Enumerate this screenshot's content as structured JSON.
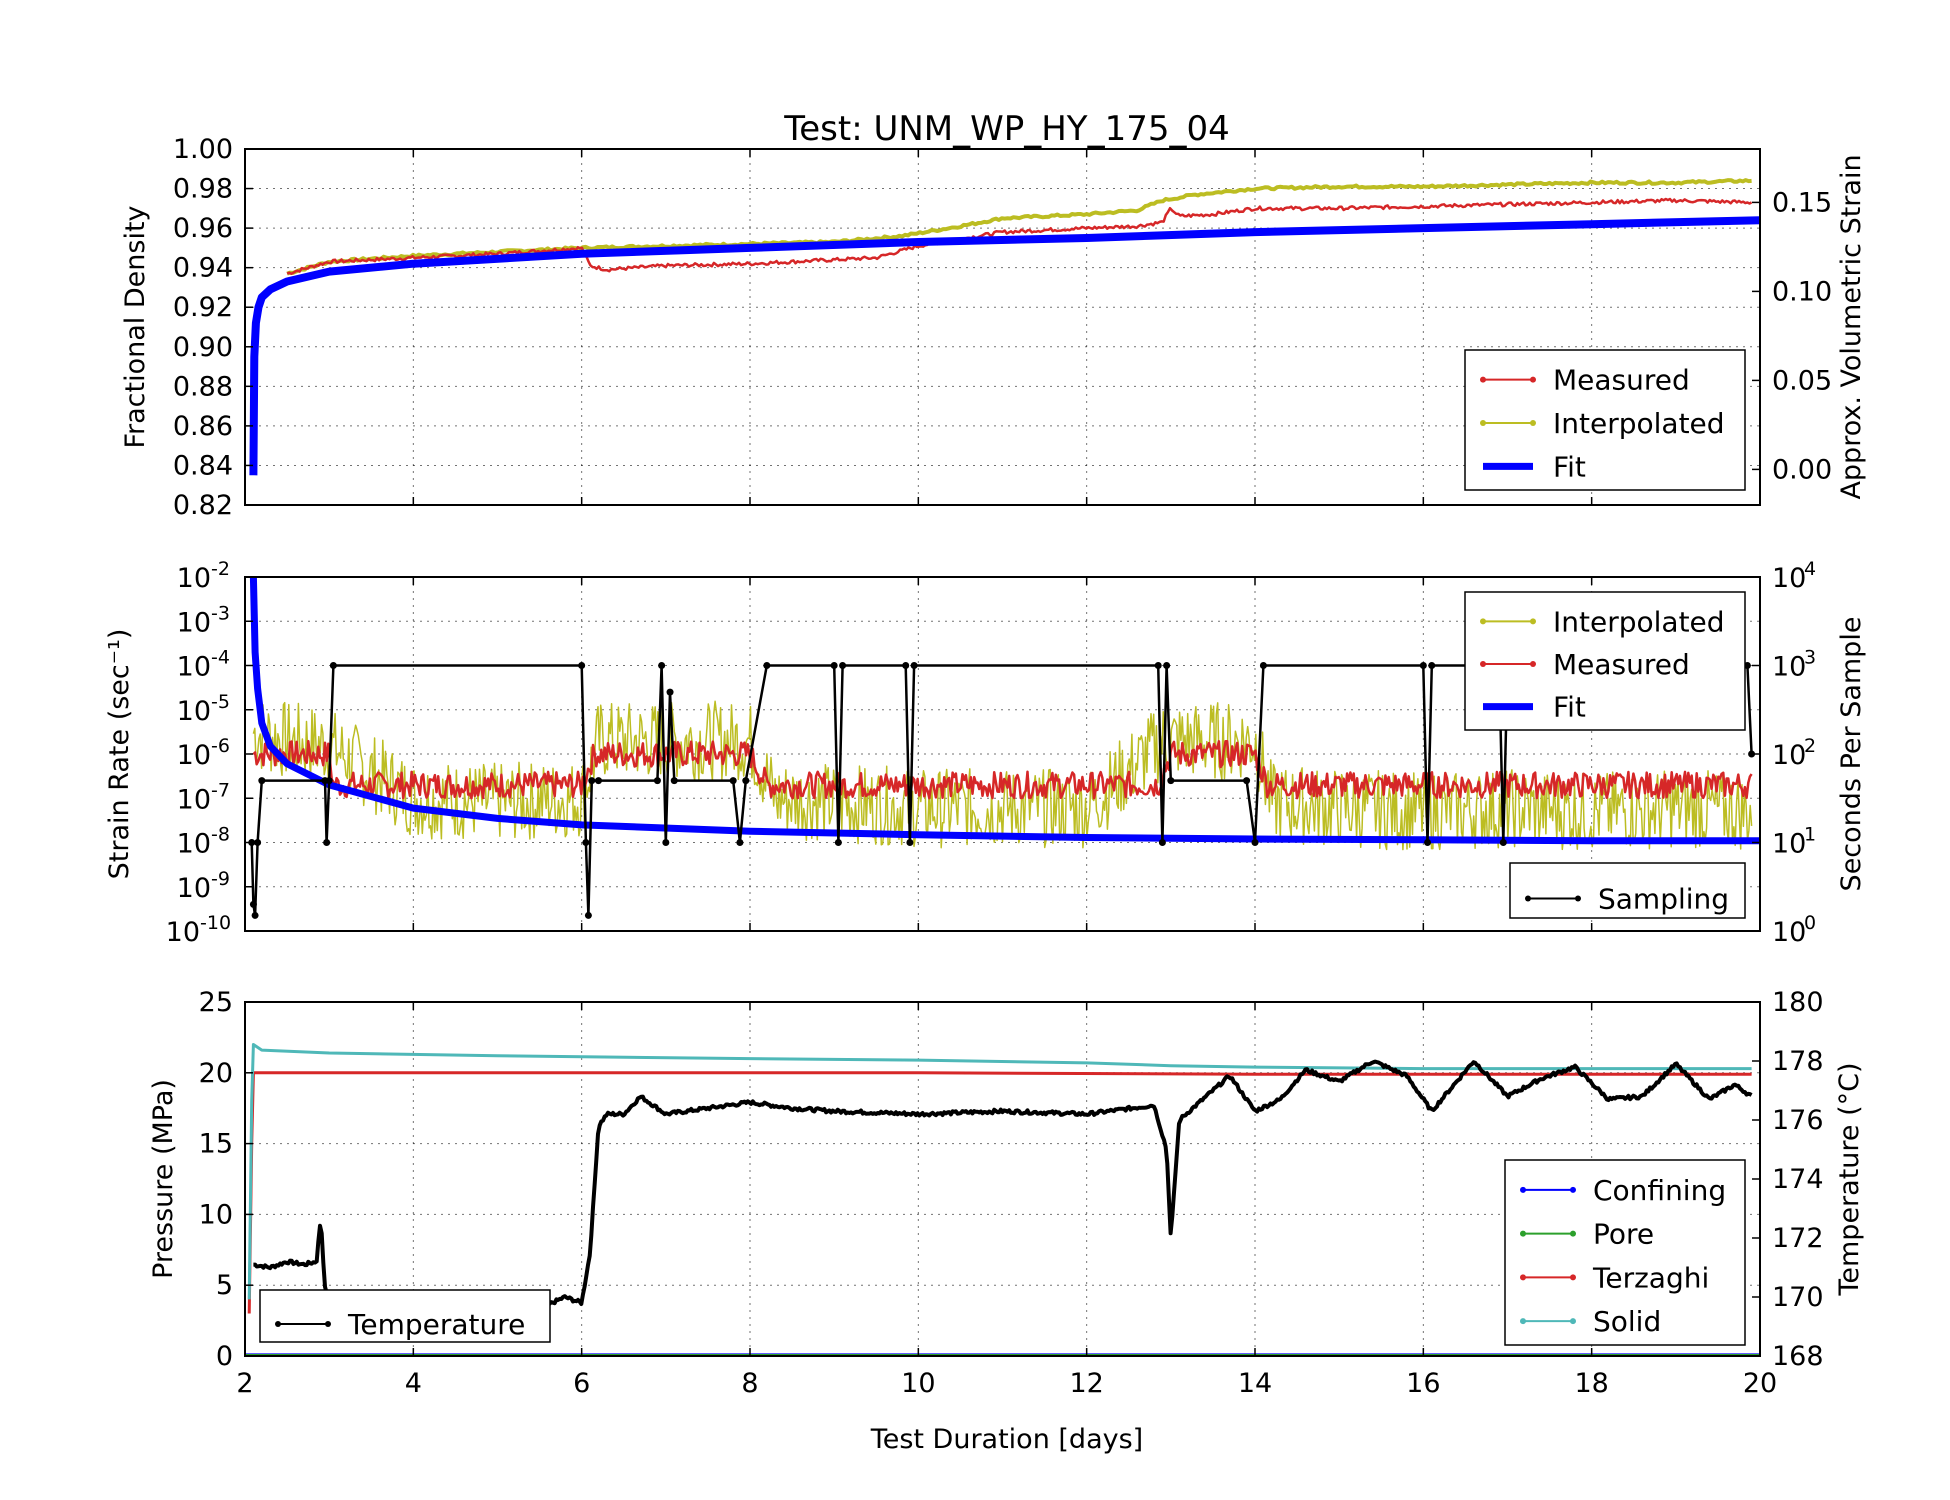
{
  "chart_data": [
    {
      "type": "line",
      "title": "Test: UNM_WP_HY_175_04",
      "ylabel": "Fractional Density",
      "ylabel_right": "Approx. Volumetric Strain",
      "xlim": [
        2,
        20
      ],
      "ylim": [
        0.82,
        1.0
      ],
      "ylim_right": [
        -0.02,
        0.18
      ],
      "yticks": [
        "0.82",
        "0.84",
        "0.86",
        "0.88",
        "0.90",
        "0.92",
        "0.94",
        "0.96",
        "0.98",
        "1.00"
      ],
      "yticks_right": [
        "0.00",
        "0.05",
        "0.10",
        "0.15"
      ],
      "grid": true,
      "legend": {
        "position": "lower-right",
        "entries": [
          "Measured",
          "Interpolated",
          "Fit"
        ]
      },
      "series": [
        {
          "name": "Measured",
          "color": "#d62728",
          "x": [
            2.5,
            3.0,
            3.5,
            4.0,
            5.0,
            6.0,
            6.1,
            6.3,
            7.0,
            8.0,
            9.0,
            9.5,
            10.0,
            11.0,
            12.0,
            12.6,
            12.9,
            13.0,
            13.1,
            13.5,
            14.0,
            15.0,
            16.0,
            17.0,
            18.0,
            19.0,
            19.9
          ],
          "y": [
            0.937,
            0.943,
            0.944,
            0.945,
            0.947,
            0.95,
            0.941,
            0.939,
            0.941,
            0.942,
            0.944,
            0.945,
            0.951,
            0.958,
            0.96,
            0.961,
            0.963,
            0.97,
            0.966,
            0.967,
            0.97,
            0.97,
            0.971,
            0.972,
            0.973,
            0.974,
            0.973
          ]
        },
        {
          "name": "Interpolated",
          "color": "#bcbd22",
          "x": [
            2.5,
            3.0,
            4.0,
            5.0,
            6.0,
            7.0,
            8.0,
            9.0,
            9.8,
            10.5,
            11.0,
            12.0,
            12.6,
            12.9,
            13.3,
            14.0,
            15.0,
            16.0,
            17.0,
            18.0,
            19.0,
            19.9
          ],
          "y": [
            0.937,
            0.943,
            0.946,
            0.948,
            0.95,
            0.951,
            0.952,
            0.953,
            0.956,
            0.961,
            0.965,
            0.967,
            0.969,
            0.974,
            0.977,
            0.98,
            0.981,
            0.981,
            0.982,
            0.983,
            0.983,
            0.984
          ]
        },
        {
          "name": "Fit",
          "color": "#0000ff",
          "x": [
            2.1,
            2.11,
            2.13,
            2.16,
            2.2,
            2.3,
            2.5,
            3.0,
            4.0,
            6.0,
            8.0,
            10.0,
            12.0,
            14.0,
            16.0,
            18.0,
            20.0
          ],
          "y": [
            0.835,
            0.895,
            0.912,
            0.92,
            0.925,
            0.929,
            0.933,
            0.938,
            0.942,
            0.947,
            0.95,
            0.953,
            0.955,
            0.958,
            0.96,
            0.962,
            0.964
          ]
        }
      ]
    },
    {
      "type": "line",
      "ylabel": "Strain Rate (sec⁻¹)",
      "ylabel_right": "Seconds Per Sample",
      "yscale": "log",
      "xlim": [
        2,
        20
      ],
      "ylim": [
        1e-10,
        0.01
      ],
      "ylim_right": [
        1,
        10000
      ],
      "ytick_exponents": [
        -2,
        -3,
        -4,
        -5,
        -6,
        -7,
        -8,
        -9,
        -10
      ],
      "ytick_exponents_right": [
        4,
        3,
        2,
        1,
        0
      ],
      "grid": true,
      "legends": [
        {
          "position": "upper-right",
          "entries": [
            "Interpolated",
            "Measured",
            "Fit"
          ]
        },
        {
          "position": "lower-right",
          "entries": [
            "Sampling"
          ]
        }
      ],
      "series": [
        {
          "name": "Interpolated",
          "color": "#bcbd22",
          "note_band": "noisy 1e-9 to 6e-6",
          "x": [
            2.1,
            2.5,
            3.0,
            4.0,
            5.0,
            6.0,
            6.2,
            7.0,
            8.0,
            8.3,
            9.0,
            10.0,
            11.0,
            12.0,
            12.9,
            13.5,
            14.0,
            14.2,
            15.0,
            16.0,
            17.0,
            18.0,
            19.0,
            19.9
          ],
          "y": [
            3e-06,
            2e-06,
            1.5e-06,
            1e-07,
            8e-08,
            1e-07,
            2e-06,
            2e-06,
            2e-06,
            1e-07,
            8e-08,
            6e-08,
            6e-08,
            6e-08,
            2e-06,
            2e-06,
            2e-06,
            8e-08,
            6e-08,
            5e-08,
            6e-08,
            5e-08,
            6e-08,
            5e-08
          ]
        },
        {
          "name": "Measured",
          "color": "#d62728",
          "x": [
            2.1,
            2.5,
            3.0,
            3.05,
            4.0,
            5.0,
            6.0,
            6.15,
            7.0,
            8.0,
            8.2,
            9.0,
            10.0,
            11.0,
            12.0,
            12.85,
            13.0,
            14.0,
            14.15,
            15.0,
            16.0,
            17.0,
            18.0,
            19.0,
            19.9
          ],
          "y": [
            1e-06,
            1e-06,
            1e-06,
            2e-07,
            2e-07,
            2e-07,
            2e-07,
            1e-06,
            1e-06,
            1e-06,
            2e-07,
            2e-07,
            2e-07,
            2e-07,
            2e-07,
            2e-07,
            1e-06,
            1e-06,
            2e-07,
            2e-07,
            2e-07,
            2e-07,
            2e-07,
            2e-07,
            2e-07
          ]
        },
        {
          "name": "Fit",
          "color": "#0000ff",
          "x": [
            2.1,
            2.12,
            2.15,
            2.2,
            2.3,
            2.5,
            3.0,
            4.0,
            5.0,
            6.0,
            8.0,
            10.0,
            12.0,
            14.0,
            16.0,
            18.0,
            20.0
          ],
          "y": [
            0.01,
            0.0002,
            3e-05,
            5e-06,
            1.5e-06,
            6e-07,
            2e-07,
            6e-08,
            3.5e-08,
            2.5e-08,
            1.8e-08,
            1.5e-08,
            1.3e-08,
            1.2e-08,
            1.15e-08,
            1.1e-08,
            1.1e-08
          ]
        },
        {
          "name": "Sampling",
          "color": "#000000",
          "axis": "right",
          "x": [
            2.08,
            2.1,
            2.12,
            2.15,
            2.2,
            2.95,
            2.97,
            3.0,
            3.05,
            6.0,
            6.05,
            6.08,
            6.12,
            6.2,
            6.9,
            6.95,
            7.0,
            7.05,
            7.1,
            7.8,
            7.88,
            7.95,
            8.2,
            9.0,
            9.05,
            9.1,
            9.85,
            9.9,
            9.95,
            12.85,
            12.9,
            12.95,
            13.0,
            13.9,
            14.0,
            14.1,
            16.0,
            16.05,
            16.1,
            16.9,
            16.95,
            17.0,
            19.85,
            19.9
          ],
          "y": [
            10,
            2,
            1.5,
            10,
            50,
            50,
            10,
            50,
            1000,
            1000,
            10,
            1.5,
            50,
            50,
            50,
            1000,
            10,
            500,
            50,
            50,
            10,
            50,
            1000,
            1000,
            10,
            1000,
            1000,
            10,
            1000,
            1000,
            10,
            1000,
            50,
            50,
            10,
            1000,
            1000,
            10,
            1000,
            1000,
            10,
            1000,
            1000,
            100
          ]
        }
      ]
    },
    {
      "type": "line",
      "xlabel": "Test Duration [days]",
      "ylabel": "Pressure (MPa)",
      "ylabel_right": "Temperature (°C)",
      "xlim": [
        2,
        20
      ],
      "ylim": [
        0,
        25
      ],
      "ylim_right": [
        168,
        180
      ],
      "xticks": [
        "2",
        "4",
        "6",
        "8",
        "10",
        "12",
        "14",
        "16",
        "18",
        "20"
      ],
      "yticks": [
        "0",
        "5",
        "10",
        "15",
        "20",
        "25"
      ],
      "yticks_right": [
        "168",
        "170",
        "172",
        "174",
        "176",
        "178",
        "180"
      ],
      "grid": true,
      "legends": [
        {
          "position": "lower-left",
          "entries": [
            "Temperature"
          ]
        },
        {
          "position": "lower-right",
          "entries": [
            "Confining",
            "Pore",
            "Terzaghi",
            "Solid"
          ]
        }
      ],
      "series": [
        {
          "name": "Confining",
          "color": "#0000ff",
          "x": [
            2,
            20
          ],
          "y": [
            0.1,
            0.1
          ]
        },
        {
          "name": "Pore",
          "color": "#2ca02c",
          "x": [
            2,
            20
          ],
          "y": [
            0.05,
            0.05
          ]
        },
        {
          "name": "Terzaghi",
          "color": "#d62728",
          "x": [
            2.05,
            2.08,
            2.1,
            2.2,
            6.0,
            10.0,
            14.0,
            18.0,
            19.9
          ],
          "y": [
            3.0,
            15.0,
            20.0,
            20.0,
            20.0,
            20.0,
            19.9,
            19.9,
            19.9
          ]
        },
        {
          "name": "Solid",
          "color": "#4fb8b8",
          "x": [
            2.05,
            2.08,
            2.1,
            2.2,
            3.0,
            5.0,
            8.0,
            10.0,
            12.0,
            13.0,
            14.0,
            16.0,
            18.0,
            19.9
          ],
          "y": [
            4.0,
            18.0,
            22.0,
            21.6,
            21.4,
            21.2,
            21.0,
            20.9,
            20.7,
            20.5,
            20.4,
            20.3,
            20.3,
            20.3
          ]
        },
        {
          "name": "Temperature",
          "color": "#000000",
          "axis": "right",
          "x": [
            2.1,
            2.3,
            2.5,
            2.7,
            2.85,
            2.9,
            2.95,
            3.05,
            3.5,
            4.5,
            5.5,
            5.8,
            6.0,
            6.1,
            6.2,
            6.3,
            6.5,
            6.7,
            7.0,
            7.5,
            8.0,
            8.5,
            9.0,
            10.0,
            11.0,
            12.0,
            12.8,
            12.95,
            13.0,
            13.1,
            13.3,
            13.7,
            14.0,
            14.3,
            14.6,
            15.0,
            15.4,
            15.8,
            16.1,
            16.6,
            17.0,
            17.4,
            17.8,
            18.2,
            18.6,
            19.0,
            19.4,
            19.7,
            19.9
          ],
          "y": [
            171.1,
            171.0,
            171.2,
            171.1,
            171.2,
            172.7,
            170.3,
            169.6,
            169.5,
            169.7,
            169.6,
            170.0,
            169.8,
            171.5,
            175.8,
            176.2,
            176.2,
            176.8,
            176.2,
            176.4,
            176.6,
            176.4,
            176.3,
            176.2,
            176.3,
            176.2,
            176.5,
            175.0,
            172.0,
            176.0,
            176.5,
            177.5,
            176.3,
            176.7,
            177.7,
            177.3,
            178.0,
            177.5,
            176.3,
            178.0,
            176.8,
            177.4,
            177.8,
            176.7,
            176.8,
            177.9,
            176.7,
            177.2,
            176.8
          ]
        }
      ]
    }
  ]
}
